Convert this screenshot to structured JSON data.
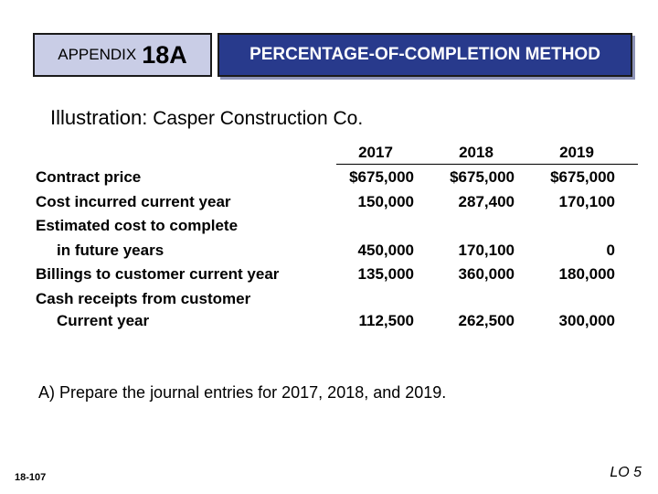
{
  "header": {
    "appendix_word": "APPENDIX",
    "appendix_number": "18A",
    "method_title": "PERCENTAGE-OF-COMPLETION METHOD"
  },
  "illustration": {
    "label": "Illustration:",
    "company": "Casper Construction Co."
  },
  "table": {
    "years": [
      "2017",
      "2018",
      "2019"
    ],
    "rows": [
      {
        "label": "Contract price",
        "values": [
          "$675,000",
          "$675,000",
          "$675,000"
        ]
      },
      {
        "label": "Cost incurred current year",
        "values": [
          "150,000",
          "287,400",
          "170,100"
        ]
      },
      {
        "label": "Estimated cost to complete",
        "values": []
      },
      {
        "label": "in future years",
        "values": [
          "450,000",
          "170,100",
          "0"
        ]
      },
      {
        "label": "Billings to customer current year",
        "values": [
          "135,000",
          "360,000",
          "180,000"
        ]
      },
      {
        "label": "Cash receipts from customer",
        "values": []
      },
      {
        "label": "Current year",
        "values": [
          "112,500",
          "262,500",
          "300,000"
        ]
      }
    ]
  },
  "task": "A)  Prepare the journal entries for 2017, 2018, and 2019.",
  "footer": {
    "slide_number": "18-107",
    "learning_objective": "LO 5"
  }
}
